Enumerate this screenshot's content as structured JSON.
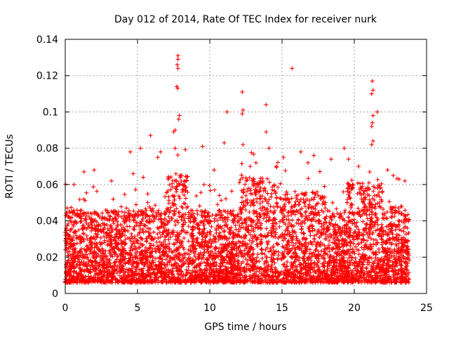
{
  "chart_data": {
    "type": "scatter",
    "title": "Day 012 of 2014, Rate Of TEC Index for receiver nurk",
    "xlabel": "GPS time / hours",
    "ylabel": "ROTI / TECUs",
    "xlim": [
      0,
      25
    ],
    "ylim": [
      0,
      0.14
    ],
    "x_ticks": [
      0,
      5,
      10,
      15,
      20,
      25
    ],
    "y_ticks": [
      0,
      0.02,
      0.04,
      0.06,
      0.08,
      0.1,
      0.12,
      0.14
    ],
    "x_tick_labels": [
      "0",
      "5",
      "10",
      "15",
      "20",
      "25"
    ],
    "y_tick_labels": [
      "0",
      "0.02",
      "0.04",
      "0.06",
      "0.08",
      "0.1",
      "0.12",
      "0.14"
    ],
    "grid": true,
    "marker": "plus",
    "color": "#ff0000",
    "series": [
      {
        "x": [
          7.8,
          7.8,
          7.75,
          7.8,
          7.72,
          7.78,
          7.9,
          7.85,
          7.6,
          7.5,
          15.7,
          12.25,
          12.3,
          12.25,
          13.9,
          11.2,
          21.25,
          21.3,
          21.2,
          21.6,
          21.3,
          21.25,
          21.2,
          21.3,
          21.2,
          5.9,
          7.6,
          4.5,
          5.2,
          6.4,
          6.6,
          9.5,
          11.0,
          12.3,
          13.9,
          14.1,
          16.3,
          17.2,
          19.3,
          19.6,
          22.3,
          23.5,
          2.0,
          3.2,
          1.3,
          0.6,
          4.7,
          5.4,
          8.4,
          9.6,
          10.3,
          12.8,
          13.2,
          14.6,
          15.1,
          16.8,
          18.4,
          20.3,
          22.7,
          23.1
        ],
        "y": [
          0.131,
          0.129,
          0.126,
          0.124,
          0.114,
          0.113,
          0.098,
          0.096,
          0.09,
          0.089,
          0.124,
          0.111,
          0.101,
          0.099,
          0.104,
          0.1,
          0.117,
          0.112,
          0.11,
          0.1,
          0.098,
          0.094,
          0.092,
          0.084,
          0.082,
          0.087,
          0.08,
          0.078,
          0.08,
          0.075,
          0.078,
          0.081,
          0.083,
          0.082,
          0.089,
          0.08,
          0.078,
          0.076,
          0.08,
          0.074,
          0.068,
          0.062,
          0.068,
          0.062,
          0.067,
          0.06,
          0.066,
          0.064,
          0.062,
          0.06,
          0.068,
          0.07,
          0.072,
          0.07,
          0.075,
          0.072,
          0.074,
          0.07,
          0.065,
          0.063
        ]
      }
    ]
  }
}
